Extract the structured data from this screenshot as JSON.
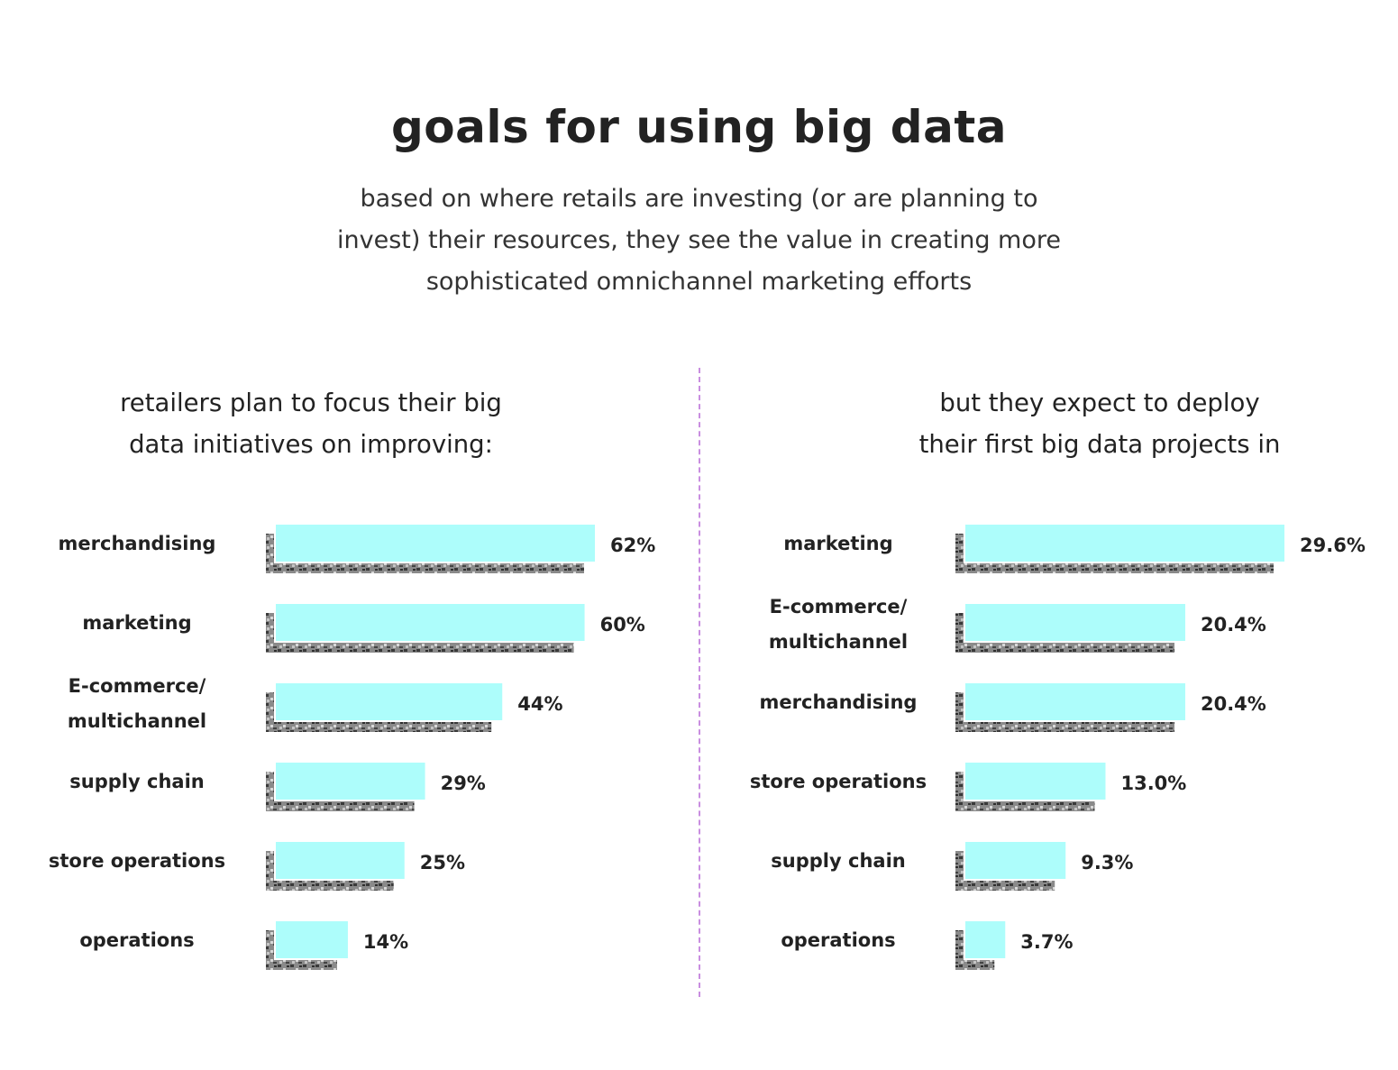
{
  "header": {
    "title": "goals for using big data",
    "subtitle_lines": [
      "based on where retails are investing (or are planning to",
      "invest) their resources, they see the value in creating more",
      "sophisticated omnichannel marketing efforts"
    ]
  },
  "colors": {
    "bar": "#adfdfb",
    "shadow": "#5a5a5a",
    "divider": "#c98ee0"
  },
  "chart_data": [
    {
      "type": "bar",
      "orientation": "horizontal",
      "title_lines": [
        "retailers plan to focus their big",
        "data initiatives on improving:"
      ],
      "categories": [
        [
          "merchandising"
        ],
        [
          "marketing"
        ],
        [
          "E-commerce/",
          "multichannel"
        ],
        [
          "supply chain"
        ],
        [
          "store operations"
        ],
        [
          "operations"
        ]
      ],
      "values": [
        62,
        60,
        44,
        29,
        25,
        14
      ],
      "value_labels": [
        "62%",
        "60%",
        "44%",
        "29%",
        "25%",
        "14%"
      ],
      "unit": "%"
    },
    {
      "type": "bar",
      "orientation": "horizontal",
      "title_lines": [
        "but they expect to deploy",
        "their first big data projects in"
      ],
      "categories": [
        [
          "marketing"
        ],
        [
          "E-commerce/",
          "multichannel"
        ],
        [
          "merchandising"
        ],
        [
          "store operations"
        ],
        [
          "supply chain"
        ],
        [
          "operations"
        ]
      ],
      "values": [
        29.6,
        20.4,
        20.4,
        13.0,
        9.3,
        3.7
      ],
      "value_labels": [
        "29.6%",
        "20.4%",
        "20.4%",
        "13.0%",
        "9.3%",
        "3.7%"
      ],
      "unit": "%"
    }
  ]
}
